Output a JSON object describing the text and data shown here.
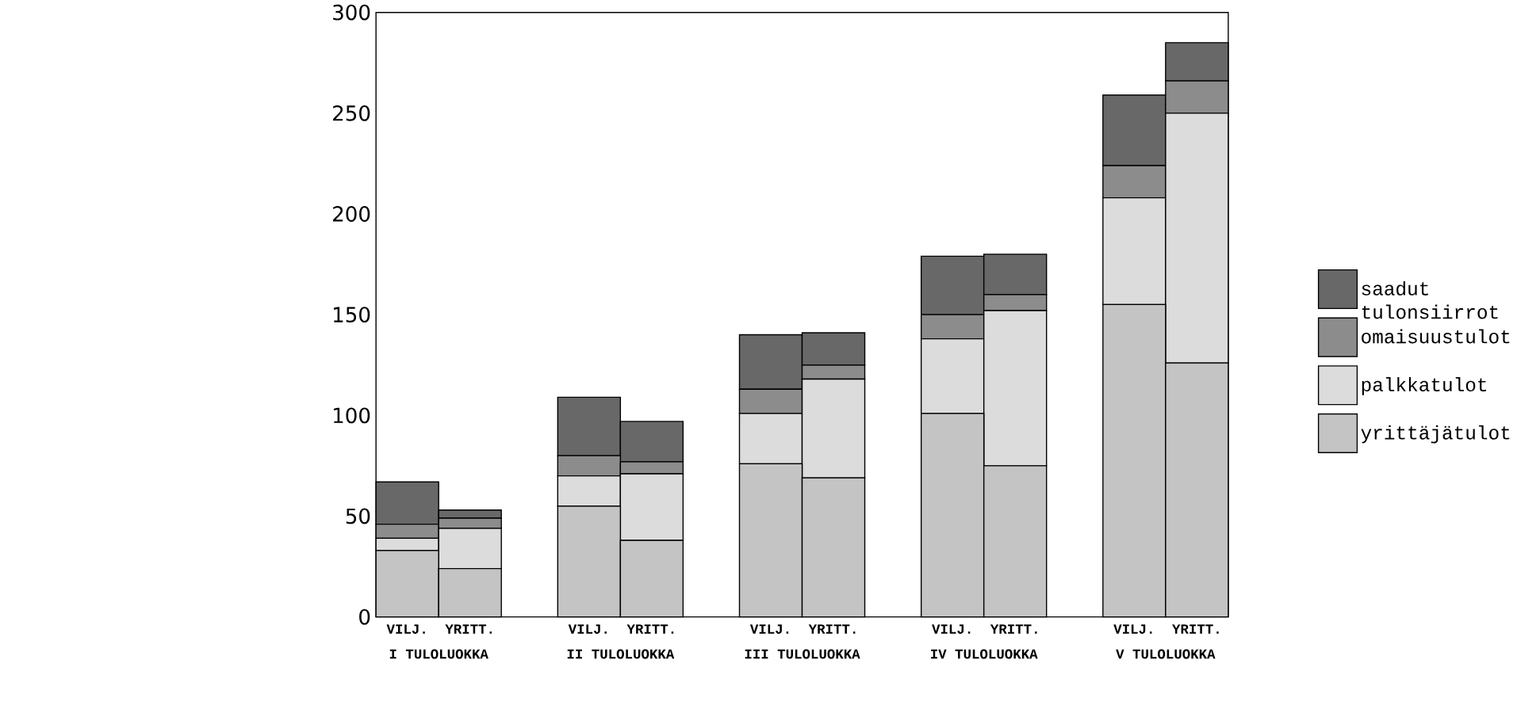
{
  "chart_data": {
    "type": "bar",
    "stacked": true,
    "categories": [
      "VILJ.",
      "YRITT.",
      "VILJ.",
      "YRITT.",
      "VILJ.",
      "YRITT.",
      "VILJ.",
      "YRITT.",
      "VILJ.",
      "YRITT."
    ],
    "series": [
      {
        "name": "yrittäjätulot",
        "color": "#c4c4c4",
        "values": [
          33,
          24,
          55,
          38,
          76,
          69,
          101,
          75,
          155,
          126
        ]
      },
      {
        "name": "palkkatulot",
        "color": "#dcdcdc",
        "values": [
          6,
          20,
          15,
          33,
          25,
          49,
          37,
          77,
          53,
          124
        ]
      },
      {
        "name": "omaisuustulot",
        "color": "#8c8c8c",
        "values": [
          7,
          5,
          10,
          6,
          12,
          7,
          12,
          8,
          16,
          16
        ]
      },
      {
        "name": "saadut tulonsiirrot",
        "color": "#686868",
        "values": [
          21,
          4,
          29,
          20,
          27,
          16,
          29,
          20,
          35,
          19
        ]
      }
    ],
    "ylim": [
      0,
      300
    ],
    "yticks": [
      0,
      50,
      100,
      150,
      200,
      250,
      300
    ],
    "legend": "right",
    "grid": false,
    "annotations": [
      "I TULOLUOKKA",
      "II TULOLUOKKA",
      "III TULOLUOKKA",
      "IV TULOLUOKKA",
      "V TULOLUOKKA"
    ]
  }
}
